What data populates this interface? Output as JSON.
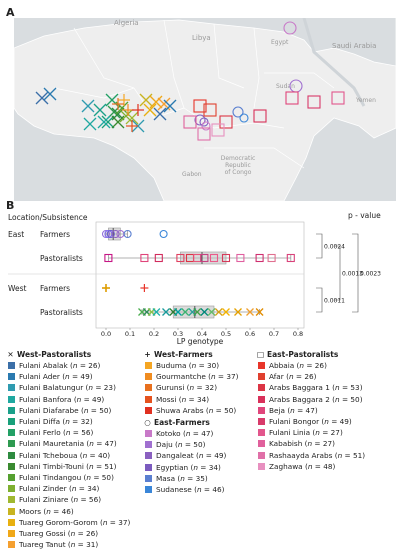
{
  "panels": {
    "a": "A",
    "b": "B"
  },
  "map": {
    "labels": {
      "algeria": "Algeria",
      "libya": "Libya",
      "egypt": "Egypt",
      "saudi_arabia": "Saudi Arabia",
      "sudan": "Sudan",
      "yemen": "Yemen",
      "drc": "Democratic\nRepublic\nof Congo",
      "gabon": "Gabon"
    },
    "colors": {
      "sea": "#d9dde0",
      "land": "#eeeeee",
      "border": "#ffffff"
    }
  },
  "chart_data": {
    "type": "boxplot",
    "y_header": "Location/Subsistence",
    "right_header": "p - value",
    "xlabel": "LP genotype",
    "xlim": [
      0,
      0.8
    ],
    "xticks": [
      "0.0",
      "0.1",
      "0.2",
      "0.3",
      "0.4",
      "0.5",
      "0.6",
      "0.7",
      "0.8"
    ],
    "groups": [
      {
        "location": "East",
        "subsistence": "Farmers",
        "marker": "circle",
        "box": {
          "min": 0.0,
          "q1": 0.01,
          "median": 0.03,
          "q3": 0.06,
          "max": 0.09
        },
        "points": [
          {
            "v": 0.0,
            "c": "#9370db"
          },
          {
            "v": 0.01,
            "c": "#7b68ee"
          },
          {
            "v": 0.02,
            "c": "#6a5acd"
          },
          {
            "v": 0.04,
            "c": "#8a60c0"
          },
          {
            "v": 0.06,
            "c": "#a070d0"
          },
          {
            "v": 0.09,
            "c": "#5a7fd0"
          },
          {
            "v": 0.24,
            "c": "#3a86d8"
          }
        ]
      },
      {
        "location": "East",
        "subsistence": "Pastoralists",
        "marker": "square",
        "box": {
          "min": 0.01,
          "q1": 0.31,
          "median": 0.4,
          "q3": 0.5,
          "max": 0.77
        },
        "points": [
          {
            "v": 0.01,
            "c": "#c71585"
          },
          {
            "v": 0.16,
            "c": "#e0457b"
          },
          {
            "v": 0.22,
            "c": "#d12b5d"
          },
          {
            "v": 0.31,
            "c": "#e04060"
          },
          {
            "v": 0.35,
            "c": "#dc3545"
          },
          {
            "v": 0.38,
            "c": "#e8557a"
          },
          {
            "v": 0.41,
            "c": "#c84080"
          },
          {
            "v": 0.45,
            "c": "#ea5a8a"
          },
          {
            "v": 0.5,
            "c": "#d63a5a"
          },
          {
            "v": 0.56,
            "c": "#e060a0"
          },
          {
            "v": 0.64,
            "c": "#cf2f6f"
          },
          {
            "v": 0.69,
            "c": "#e07090"
          },
          {
            "v": 0.77,
            "c": "#d9417a"
          }
        ]
      },
      {
        "location": "West",
        "subsistence": "Farmers",
        "marker": "plus",
        "box": null,
        "points": [
          {
            "v": 0.0,
            "c": "#ff8c00"
          },
          {
            "v": 0.0,
            "c": "#f4a300"
          },
          {
            "v": 0.0,
            "c": "#e07b00"
          },
          {
            "v": 0.0,
            "c": "#d9a000"
          },
          {
            "v": 0.16,
            "c": "#e8352a"
          }
        ]
      },
      {
        "location": "West",
        "subsistence": "Pastoralists",
        "marker": "cross",
        "box": {
          "min": 0.15,
          "q1": 0.28,
          "median": 0.37,
          "q3": 0.45,
          "max": 0.64
        },
        "points": [
          {
            "v": 0.15,
            "c": "#4caf50"
          },
          {
            "v": 0.17,
            "c": "#2e8b57"
          },
          {
            "v": 0.19,
            "c": "#8bc34a"
          },
          {
            "v": 0.21,
            "c": "#20b2aa"
          },
          {
            "v": 0.25,
            "c": "#1a9c9c"
          },
          {
            "v": 0.28,
            "c": "#2e7d32"
          },
          {
            "v": 0.3,
            "c": "#00a0a0"
          },
          {
            "v": 0.33,
            "c": "#3cb371"
          },
          {
            "v": 0.36,
            "c": "#2aa198"
          },
          {
            "v": 0.38,
            "c": "#43a047"
          },
          {
            "v": 0.41,
            "c": "#00897b"
          },
          {
            "v": 0.44,
            "c": "#66bb6a"
          },
          {
            "v": 0.47,
            "c": "#d4a017"
          },
          {
            "v": 0.5,
            "c": "#f4b400"
          },
          {
            "v": 0.55,
            "c": "#e6a100"
          },
          {
            "v": 0.6,
            "c": "#f0a030"
          },
          {
            "v": 0.64,
            "c": "#e08c00"
          }
        ]
      }
    ],
    "pvalues": [
      {
        "label": "0.0024"
      },
      {
        "label": "0.0011"
      },
      {
        "label": "0.0013"
      },
      {
        "label": "0.0023"
      }
    ]
  },
  "legend": {
    "west_pastoralists": {
      "title": "West-Pastoralists",
      "items": [
        {
          "name": "Fulani Abalak",
          "n": "26",
          "color": "#3b6fa8"
        },
        {
          "name": "Fulani Ader",
          "n": "49",
          "color": "#2a7ab0"
        },
        {
          "name": "Fulani Balatungur",
          "n": "23",
          "color": "#2f9bb0"
        },
        {
          "name": "Fulani Banfora",
          "n": "49",
          "color": "#1fa8a0"
        },
        {
          "name": "Fulani Diafarabe",
          "n": "50",
          "color": "#1aa08a"
        },
        {
          "name": "Fulani Diffa",
          "n": "32",
          "color": "#18a07a"
        },
        {
          "name": "Fulani Ferlo",
          "n": "56",
          "color": "#22a065"
        },
        {
          "name": "Fulani Mauretania",
          "n": "47",
          "color": "#2e9a50"
        },
        {
          "name": "Fulani Tcheboua",
          "n": "40",
          "color": "#2e8b40"
        },
        {
          "name": "Fulani Timbi-Touni",
          "n": "51",
          "color": "#3a8a30"
        },
        {
          "name": "Fulani Tindangou",
          "n": "50",
          "color": "#55a030"
        },
        {
          "name": "Fulani Zinder",
          "n": "34",
          "color": "#7fb030"
        },
        {
          "name": "Fulani Ziniare",
          "n": "56",
          "color": "#a0b830"
        },
        {
          "name": "Moors",
          "n": "46",
          "color": "#c8b420"
        },
        {
          "name": "Tuareg Gorom-Gorom",
          "n": "37",
          "color": "#e8b010"
        },
        {
          "name": "Tuareg Gossi",
          "n": "26",
          "color": "#f0a818"
        },
        {
          "name": "Tuareg Tanut",
          "n": "31",
          "color": "#f5a030"
        }
      ]
    },
    "west_farmers": {
      "title": "West-Farmers",
      "items": [
        {
          "name": "Buduma",
          "n": "30",
          "color": "#f5a623"
        },
        {
          "name": "Gourmantche",
          "n": "37",
          "color": "#f08c20"
        },
        {
          "name": "Gurunsi",
          "n": "32",
          "color": "#e8701e"
        },
        {
          "name": "Mossi",
          "n": "34",
          "color": "#e5521e"
        },
        {
          "name": "Shuwa Arabs",
          "n": "50",
          "color": "#e03020"
        }
      ]
    },
    "east_farmers": {
      "title": "East-Farmers",
      "items": [
        {
          "name": "Kotoko",
          "n": "47",
          "color": "#c879c8"
        },
        {
          "name": "Daju",
          "n": "50",
          "color": "#a070d0"
        },
        {
          "name": "Dangaleat",
          "n": "49",
          "color": "#8a60c0"
        },
        {
          "name": "Egyptian",
          "n": "34",
          "color": "#7b5bbf"
        },
        {
          "name": "Masa",
          "n": "35",
          "color": "#5a7fd0"
        },
        {
          "name": "Sudanese",
          "n": "46",
          "color": "#3a86d8"
        }
      ]
    },
    "east_pastoralists": {
      "title": "East-Pastoralists",
      "items": [
        {
          "name": "Abbaia",
          "n": "26",
          "color": "#e8352a"
        },
        {
          "name": "Afar",
          "n": "26",
          "color": "#e0402f"
        },
        {
          "name": "Arabs Baggara 1",
          "n": "53",
          "color": "#dc3545"
        },
        {
          "name": "Arabs Baggara 2",
          "n": "50",
          "color": "#d9315a"
        },
        {
          "name": "Beja",
          "n": "47",
          "color": "#e0457b"
        },
        {
          "name": "Fulani Bongor",
          "n": "49",
          "color": "#d83a6a"
        },
        {
          "name": "Fulani Linia",
          "n": "27",
          "color": "#e2568c"
        },
        {
          "name": "Kababish",
          "n": "27",
          "color": "#e0609c"
        },
        {
          "name": "Rashaayda Arabs",
          "n": "51",
          "color": "#e070a8"
        },
        {
          "name": "Zaghawa",
          "n": "48",
          "color": "#e890c0"
        }
      ]
    }
  }
}
